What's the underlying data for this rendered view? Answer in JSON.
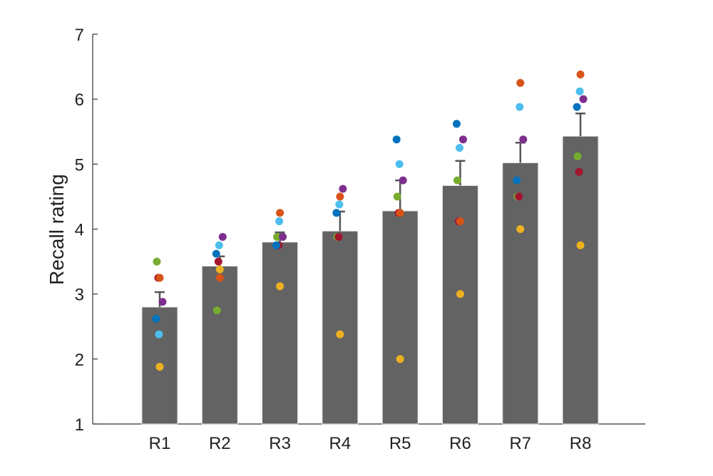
{
  "chart_data": {
    "type": "bar",
    "title": "",
    "xlabel": "",
    "ylabel": "Recall rating",
    "ylim": [
      1,
      7
    ],
    "yticks": [
      1,
      2,
      3,
      4,
      5,
      6,
      7
    ],
    "categories": [
      "R1",
      "R2",
      "R3",
      "R4",
      "R5",
      "R6",
      "R7",
      "R8"
    ],
    "values": [
      2.8,
      3.43,
      3.8,
      3.97,
      4.28,
      4.67,
      5.02,
      5.43
    ],
    "error_upper": [
      3.03,
      3.58,
      3.95,
      4.27,
      4.75,
      5.05,
      5.33,
      5.78
    ],
    "bar_color": "#636363",
    "error_color": "#555555",
    "grid": false,
    "points": [
      {
        "name": "",
        "color": "#77AC30",
        "values": [
          3.5,
          2.75,
          3.88,
          3.88,
          4.5,
          4.75,
          4.5,
          5.12
        ]
      },
      {
        "name": "",
        "color": "#A2142F",
        "values": [
          3.25,
          3.5,
          3.75,
          3.88,
          4.25,
          4.12,
          4.5,
          4.88
        ]
      },
      {
        "name": "",
        "color": "#7E2F8E",
        "values": [
          2.88,
          3.88,
          3.88,
          4.62,
          4.75,
          5.38,
          5.38,
          6.0
        ]
      },
      {
        "name": "",
        "color": "#0072BD",
        "values": [
          2.62,
          3.62,
          3.75,
          4.25,
          5.38,
          5.62,
          4.75,
          5.88
        ]
      },
      {
        "name": "",
        "color": "#4DBEEE",
        "values": [
          2.38,
          3.75,
          4.12,
          4.38,
          5.0,
          5.25,
          5.88,
          6.12
        ]
      },
      {
        "name": "",
        "color": "#D95319",
        "values": [
          3.25,
          3.25,
          4.25,
          4.5,
          4.25,
          4.12,
          6.25,
          6.38
        ]
      },
      {
        "name": "",
        "color": "#EDB120",
        "values": [
          1.88,
          3.38,
          3.12,
          2.38,
          2.0,
          3.0,
          4.0,
          3.75
        ]
      }
    ]
  }
}
